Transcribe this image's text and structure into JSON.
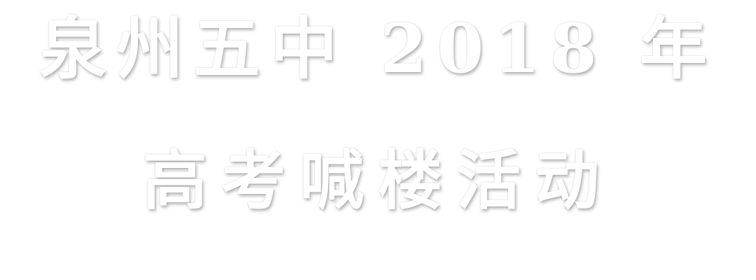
{
  "banner": {
    "line1": "泉州五中 2018 年",
    "line2": "高考喊楼活动",
    "text_color": "#ffffff",
    "background_color": "#ffffff"
  }
}
